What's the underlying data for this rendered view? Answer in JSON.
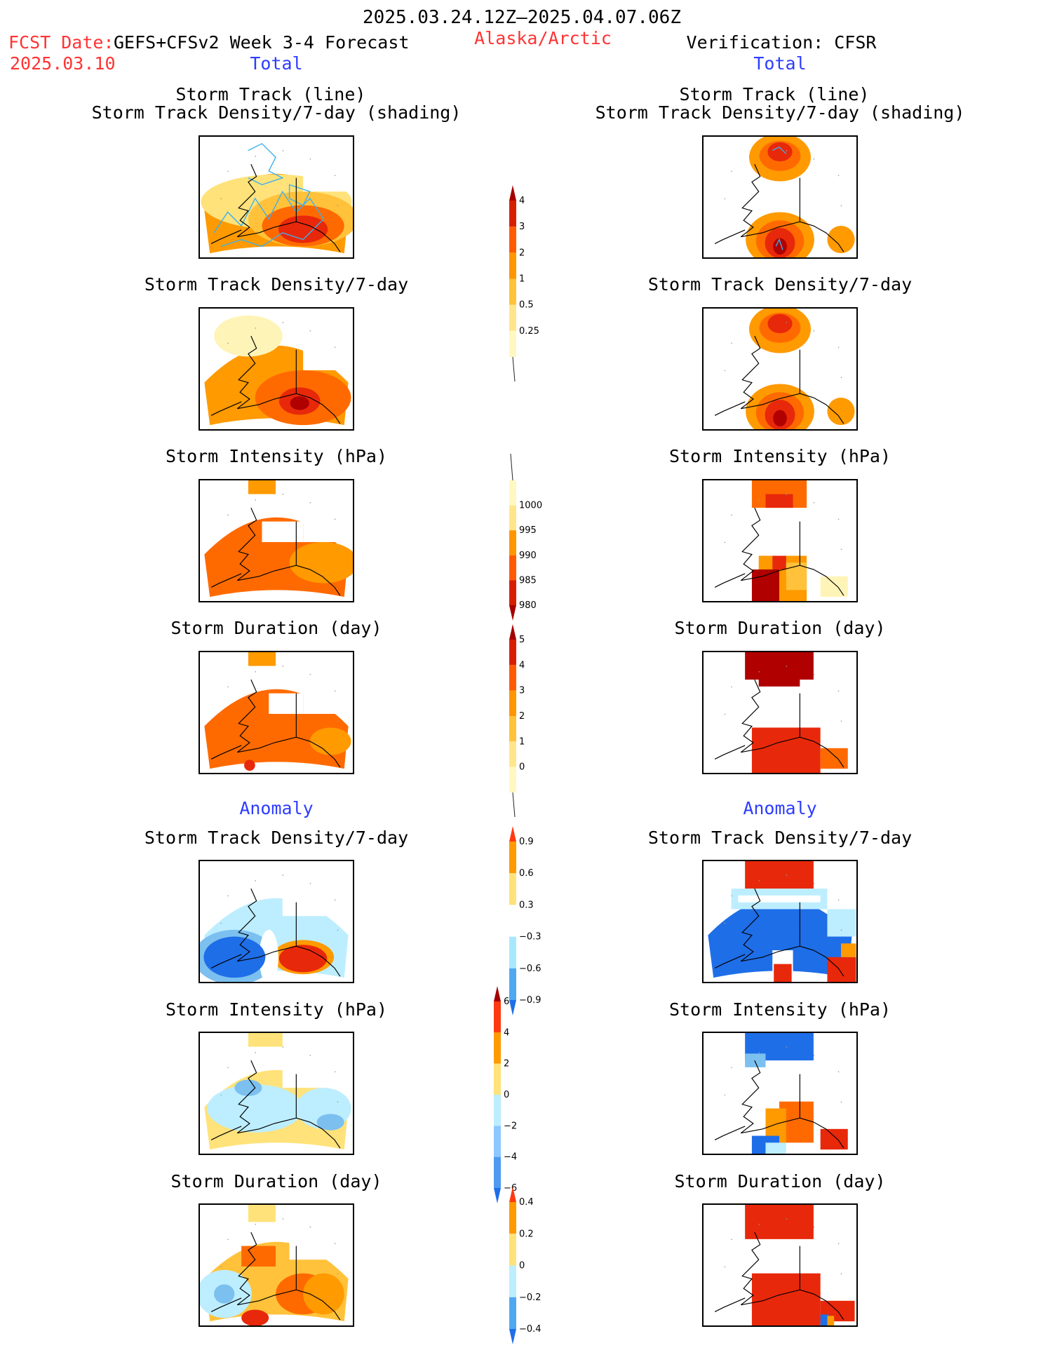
{
  "header": {
    "period": "2025.03.24.12Z–2025.04.07.06Z",
    "fcst_label": "FCST Date:",
    "fcst_model": "GEFS+CFSv2 Week 3-4 Forecast",
    "fcst_date": "2025.03.10",
    "region": "Alaska/Arctic",
    "verification": "Verification: CFSR",
    "total_left": "Total",
    "total_right": "Total",
    "anomaly_left": "Anomaly",
    "anomaly_right": "Anomaly"
  },
  "panels": {
    "left": [
      {
        "title1": "Storm Track (line)",
        "title2": "Storm Track Density/7-day (shading)"
      },
      {
        "title1": "Storm Track Density/7-day"
      },
      {
        "title1": "Storm Intensity (hPa)"
      },
      {
        "title1": "Storm Duration (day)"
      },
      {
        "title1": "Storm Track Density/7-day"
      },
      {
        "title1": "Storm Intensity (hPa)"
      },
      {
        "title1": "Storm Duration (day)"
      }
    ],
    "right": [
      {
        "title1": "Storm Track (line)",
        "title2": "Storm Track Density/7-day (shading)"
      },
      {
        "title1": "Storm Track Density/7-day"
      },
      {
        "title1": "Storm Intensity (hPa)"
      },
      {
        "title1": "Storm Duration (day)"
      },
      {
        "title1": "Storm Track Density/7-day"
      },
      {
        "title1": "Storm Intensity (hPa)"
      },
      {
        "title1": "Storm Duration (day)"
      }
    ]
  },
  "colorbars": [
    {
      "id": "density_total",
      "labels": [
        "4",
        "3",
        "2",
        "1",
        "0.5",
        "0.25"
      ],
      "colors": [
        "#a50000",
        "#d81e00",
        "#ff5a00",
        "#ff9600",
        "#ffc23a",
        "#ffe68c",
        "#fff8c0"
      ]
    },
    {
      "id": "intensity_total",
      "labels": [
        "1000",
        "995",
        "990",
        "985",
        "980"
      ],
      "colors": [
        "#fff8c0",
        "#ffe68c",
        "#ff9600",
        "#ff5a00",
        "#d81e00",
        "#a50000"
      ]
    },
    {
      "id": "duration_total",
      "labels": [
        "5",
        "4",
        "3",
        "2",
        "1",
        "0"
      ],
      "colors": [
        "#a50000",
        "#d81e00",
        "#ff5a00",
        "#ff9600",
        "#ffc23a",
        "#ffe68c",
        "#fff8c0"
      ]
    },
    {
      "id": "density_anom",
      "labels": [
        "0.9",
        "0.6",
        "0.3",
        "−0.3",
        "−0.6",
        "−0.9"
      ],
      "colors": [
        "#ff3a10",
        "#ff9a00",
        "#ffe27a",
        "#ffffff",
        "#a8e8ff",
        "#50a8f0",
        "#1e6ee8"
      ]
    },
    {
      "id": "intensity_anom",
      "labels": [
        "6",
        "4",
        "2",
        "0",
        "−2",
        "−4",
        "−6"
      ],
      "colors": [
        "#a50000",
        "#ff3a10",
        "#ff9a00",
        "#ffe27a",
        "#bdeeff",
        "#8cc8ff",
        "#4f9af0",
        "#1e6ee8"
      ]
    },
    {
      "id": "duration_anom",
      "labels": [
        "0.4",
        "0.2",
        "0",
        "−0.2",
        "−0.4"
      ],
      "colors": [
        "#ff3a10",
        "#ff9a00",
        "#ffe27a",
        "#bdeeff",
        "#50a8f0",
        "#1e6ee8"
      ]
    }
  ],
  "colors": {
    "red_text": "#ff3333",
    "blue_text": "#2d3dff",
    "track_line": "#3ab0f0"
  }
}
